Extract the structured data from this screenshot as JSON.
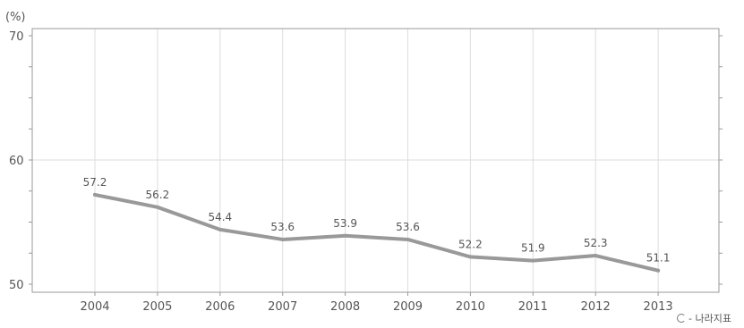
{
  "chart_data": {
    "type": "line",
    "title": "",
    "xlabel": "",
    "ylabel": "",
    "unit": "(%)",
    "x": [
      "2004",
      "2005",
      "2006",
      "2007",
      "2008",
      "2009",
      "2010",
      "2011",
      "2012",
      "2013"
    ],
    "series": [
      {
        "values": [
          57.2,
          56.2,
          54.4,
          53.6,
          53.9,
          53.6,
          52.2,
          51.9,
          52.3,
          51.1
        ],
        "color": "#999999"
      }
    ],
    "data_labels": [
      "57.2",
      "56.2",
      "54.4",
      "53.6",
      "53.9",
      "53.6",
      "52.2",
      "51.9",
      "52.3",
      "51.1"
    ],
    "ylim": [
      50,
      70
    ],
    "yticks": [
      "50",
      "60",
      "70"
    ],
    "grid": true,
    "legend": "none"
  },
  "source": {
    "label": "- 나라지표"
  }
}
